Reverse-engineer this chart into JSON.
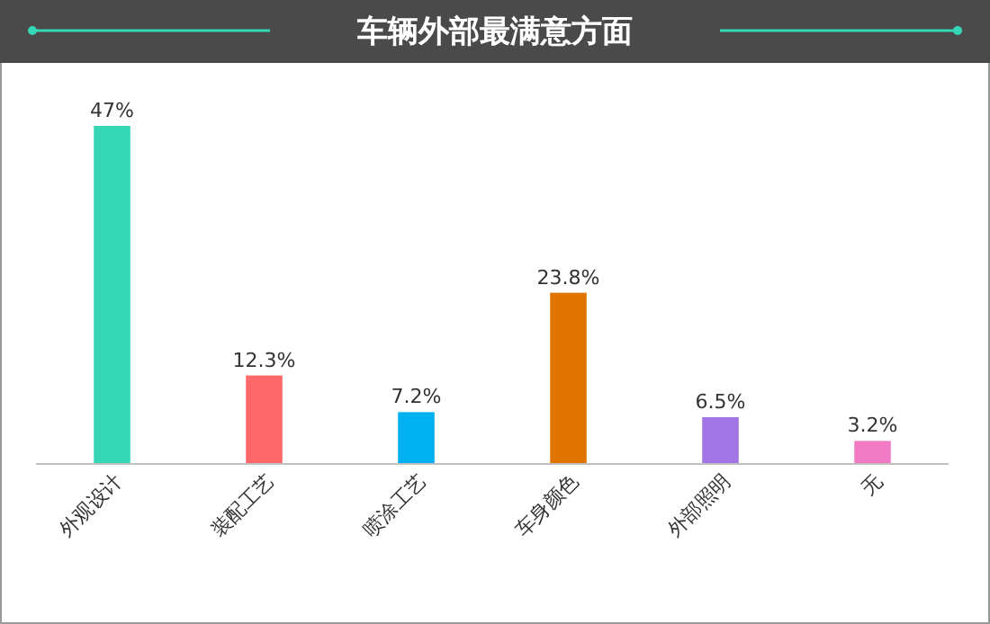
{
  "chart_data": {
    "type": "bar",
    "title": "车辆外部最满意方面",
    "categories": [
      "外观设计",
      "装配工艺",
      "喷涂工艺",
      "车身颜色",
      "外部照明",
      "无"
    ],
    "values": [
      47,
      12.3,
      7.2,
      23.8,
      6.5,
      3.2
    ],
    "value_labels": [
      "47%",
      "12.3%",
      "7.2%",
      "23.8%",
      "6.5%",
      "3.2%"
    ],
    "colors": [
      "#36d7b7",
      "#ff6868",
      "#00b0f0",
      "#e07400",
      "#a374e4",
      "#f07ac4"
    ],
    "orientation": "vertical"
  }
}
